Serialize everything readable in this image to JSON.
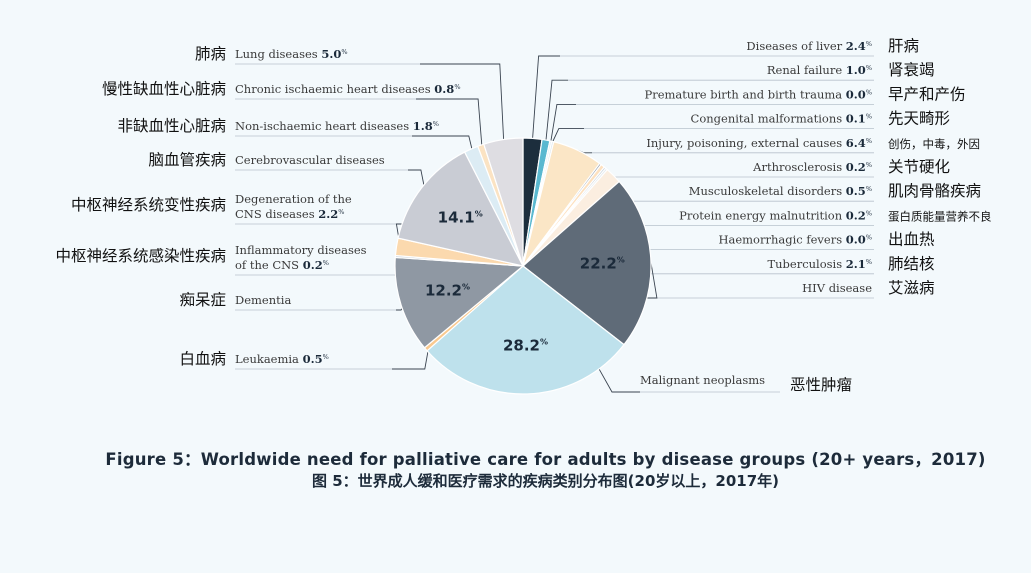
{
  "chart_data": {
    "type": "pie",
    "title": "Figure 5：Worldwide need for palliative care for adults by disease groups (20+ years，2017)",
    "subtitle": "图 5：世界成人缓和医疗需求的疾病类别分布图(20岁以上，2017年)",
    "unit": "%",
    "slices": [
      {
        "en": "Diseases of liver",
        "zh": "肝病",
        "value": 2.4,
        "color": "#1c2e3d"
      },
      {
        "en": "Renal failure",
        "zh": "肾衰竭",
        "value": 1.0,
        "color": "#5ab8d0"
      },
      {
        "en": "Premature birth and birth trauma",
        "zh": "早产和产伤",
        "value": 0.0,
        "color": "#e6eef3"
      },
      {
        "en": "Congenital malformations",
        "zh": "先天畸形",
        "value": 0.1,
        "color": "#dfe8ee"
      },
      {
        "en": "Injury, poisoning, external causes",
        "zh": "创伤，中毒，外因",
        "value": 6.4,
        "color": "#fbe6c6"
      },
      {
        "en": "Arthrosclerosis",
        "zh": "关节硬化",
        "value": 0.2,
        "color": "#9aa3ad"
      },
      {
        "en": "Musculoskeletal disorders",
        "zh": "肌肉骨骼疾病",
        "value": 0.5,
        "color": "#fde1c0"
      },
      {
        "en": "Protein energy malnutrition",
        "zh": "蛋白质能量营养不良",
        "value": 0.2,
        "color": "#c7d1d9"
      },
      {
        "en": "Haemorrhagic fevers",
        "zh": "出血热",
        "value": 0.0,
        "color": "#e0e8ee"
      },
      {
        "en": "Tuberculosis",
        "zh": "肺结核",
        "value": 2.1,
        "color": "#fbeee0"
      },
      {
        "en": "HIV disease",
        "zh": "艾滋病",
        "value": 22.2,
        "color": "#5f6b78"
      },
      {
        "en": "Malignant neoplasms",
        "zh": "恶性肿瘤",
        "value": 28.2,
        "color": "#bee1ec"
      },
      {
        "en": "Leukaemia",
        "zh": "白血病",
        "value": 0.5,
        "color": "#f9c98f"
      },
      {
        "en": "Dementia",
        "zh": "痴呆症",
        "value": 12.2,
        "color": "#8f98a3"
      },
      {
        "en": "Inflammatory diseases of the CNS",
        "zh": "中枢神经系统感染性疾病",
        "value": 0.2,
        "color": "#d3dbe2"
      },
      {
        "en": "Degeneration of the CNS diseases",
        "zh": "中枢神经系统变性疾病",
        "value": 2.2,
        "color": "#fbd9ae"
      },
      {
        "en": "Cerebrovascular diseases",
        "zh": "脑血管疾病",
        "value": 14.1,
        "color": "#c9ccd4"
      },
      {
        "en": "Non-ischaemic heart diseases",
        "zh": "非缺血性心脏病",
        "value": 1.8,
        "color": "#dcecf4"
      },
      {
        "en": "Chronic ischaemic heart diseases",
        "zh": "慢性缺血性心脏病",
        "value": 0.8,
        "color": "#fbe3c3"
      },
      {
        "en": "Lung diseases",
        "zh": "肺病",
        "value": 5.0,
        "color": "#dedde2"
      }
    ],
    "pie_labels": [
      {
        "slice": "Malignant neoplasms",
        "text": "28.2"
      },
      {
        "slice": "HIV disease",
        "text": "22.2"
      },
      {
        "slice": "Cerebrovascular diseases",
        "text": "14.1"
      },
      {
        "slice": "Dementia",
        "text": "12.2"
      }
    ],
    "right_labels": [
      {
        "slice": "Diseases of liver",
        "en": "Diseases of liver",
        "val": "2.4",
        "zh": "肝病"
      },
      {
        "slice": "Renal failure",
        "en": "Renal failure",
        "val": "1.0",
        "zh": "肾衰竭"
      },
      {
        "slice": "Premature birth and birth trauma",
        "en": "Premature birth and birth trauma",
        "val": "0.0",
        "zh": "早产和产伤"
      },
      {
        "slice": "Congenital malformations",
        "en": "Congenital malformations",
        "val": "0.1",
        "zh": "先天畸形"
      },
      {
        "slice": "Injury, poisoning, external causes",
        "en": "Injury, poisoning, external causes",
        "val": "6.4",
        "zh": "创伤，中毒，外因"
      },
      {
        "slice": "Arthrosclerosis",
        "en": "Arthrosclerosis",
        "val": "0.2",
        "zh": "关节硬化"
      },
      {
        "slice": "Musculoskeletal disorders",
        "en": "Musculoskeletal disorders",
        "val": "0.5",
        "zh": "肌肉骨骼疾病"
      },
      {
        "slice": "Protein energy malnutrition",
        "en": "Protein energy malnutrition",
        "val": "0.2",
        "zh": "蛋白质能量营养不良"
      },
      {
        "slice": "Haemorrhagic fevers",
        "en": "Haemorrhagic fevers",
        "val": "0.0",
        "zh": "出血热"
      },
      {
        "slice": "Tuberculosis",
        "en": "Tuberculosis",
        "val": "2.1",
        "zh": "肺结核"
      },
      {
        "slice": "HIV disease",
        "en": "HIV disease",
        "val": "",
        "zh": "艾滋病"
      }
    ],
    "left_labels": [
      {
        "slice": "Lung diseases",
        "en": "Lung diseases",
        "en2": "",
        "val": "5.0",
        "zh": "肺病"
      },
      {
        "slice": "Chronic ischaemic heart diseases",
        "en": "Chronic ischaemic heart diseases",
        "en2": "",
        "val": "0.8",
        "zh": "慢性缺血性心脏病"
      },
      {
        "slice": "Non-ischaemic heart diseases",
        "en": "Non-ischaemic heart diseases",
        "en2": "",
        "val": "1.8",
        "zh": "非缺血性心脏病"
      },
      {
        "slice": "Cerebrovascular diseases",
        "en": "Cerebrovascular diseases",
        "en2": "",
        "val": "",
        "zh": "脑血管疾病"
      },
      {
        "slice": "Degeneration of the CNS diseases",
        "en": "Degeneration of the",
        "en2": "CNS diseases",
        "val": "2.2",
        "zh": "中枢神经系统变性疾病"
      },
      {
        "slice": "Inflammatory diseases of the CNS",
        "en": "Inflammatory diseases",
        "en2": "of the CNS",
        "val": "0.2",
        "zh": "中枢神经系统感染性疾病"
      },
      {
        "slice": "Dementia",
        "en": "Dementia",
        "en2": "",
        "val": "",
        "zh": "痴呆症"
      },
      {
        "slice": "Leukaemia",
        "en": "Leukaemia",
        "en2": "",
        "val": "0.5",
        "zh": "白血病"
      }
    ],
    "bottom_labels": [
      {
        "slice": "Malignant neoplasms",
        "en": "Malignant neoplasms",
        "zh": "恶性肿瘤"
      }
    ]
  }
}
